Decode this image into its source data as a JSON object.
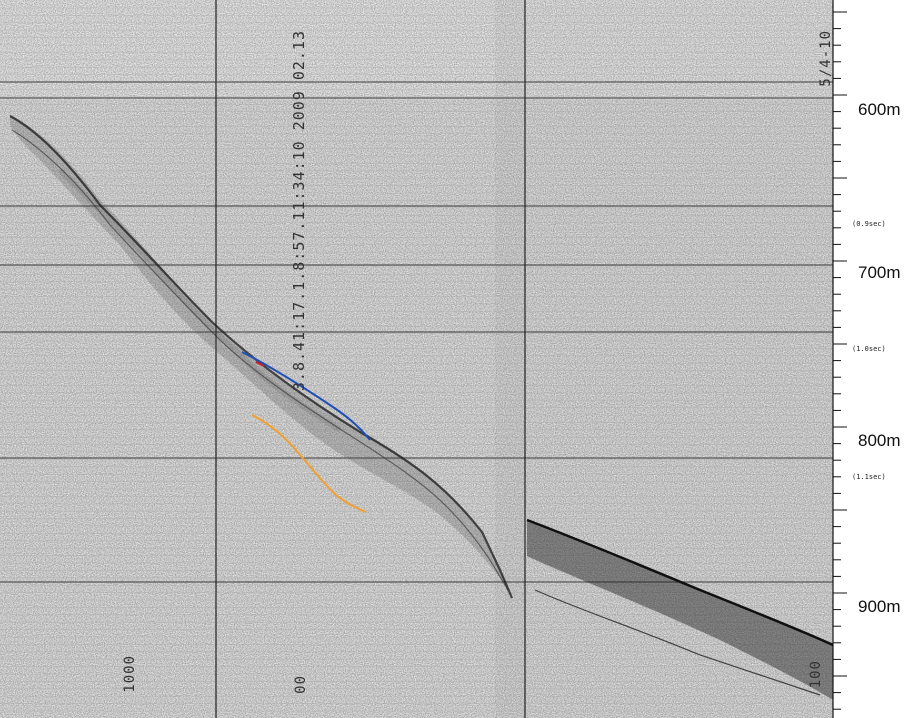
{
  "depth_labels": [
    "600m",
    "700m",
    "800m",
    "900m"
  ],
  "time_labels": [
    "(0.9sec)",
    "(1.0sec)",
    "(1.1sec)"
  ],
  "record_annotation": "3.8.41:17.1.8:57.11:34:10 2009 02.13",
  "ship_annotation": "5/4-10",
  "scale_numbers": {
    "left": "1000",
    "middle": "00",
    "right": "100"
  },
  "colors": {
    "paper": "#f2f2f2",
    "grid": "#9a9a9a",
    "reflection": "#1a1a1a",
    "interpreted_blue": "#1f4fb5",
    "interpreted_orange": "#f0a030",
    "interpreted_red": "#d02020"
  }
}
